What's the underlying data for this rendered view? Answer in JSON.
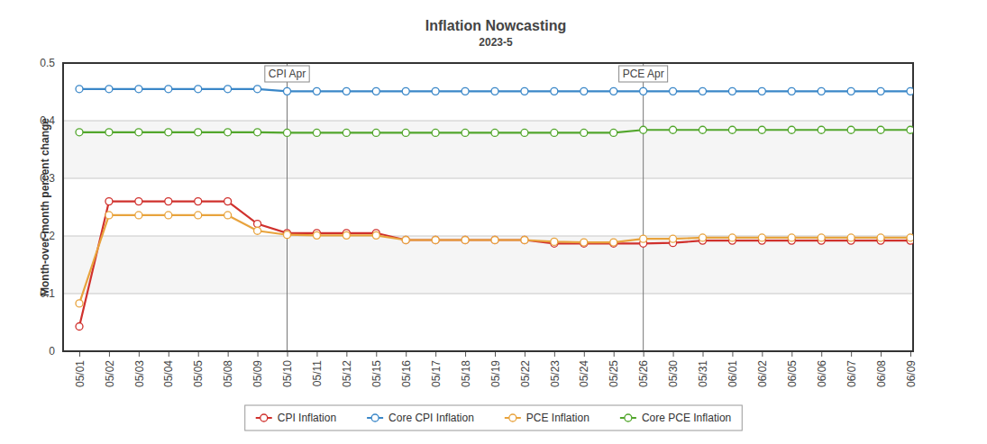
{
  "chart_data": {
    "type": "line",
    "title": "Inflation Nowcasting",
    "subtitle": "2023-5",
    "y_label": "Month-over-month percent change",
    "categories": [
      "05/01",
      "05/02",
      "05/03",
      "05/04",
      "05/05",
      "05/08",
      "05/09",
      "05/10",
      "05/11",
      "05/12",
      "05/15",
      "05/16",
      "05/17",
      "05/18",
      "05/19",
      "05/22",
      "05/23",
      "05/24",
      "05/25",
      "05/26",
      "05/30",
      "05/31",
      "06/01",
      "06/02",
      "06/05",
      "06/06",
      "06/07",
      "06/08",
      "06/09"
    ],
    "series": [
      {
        "name": "CPI Inflation",
        "color": "#d0312d",
        "marker": "circle",
        "values": [
          0.043,
          0.26,
          0.26,
          0.26,
          0.26,
          0.26,
          0.221,
          0.205,
          0.205,
          0.205,
          0.205,
          0.193,
          0.193,
          0.193,
          0.193,
          0.193,
          0.187,
          0.187,
          0.187,
          0.187,
          0.188,
          0.192,
          0.192,
          0.192,
          0.192,
          0.192,
          0.192,
          0.192,
          0.192
        ]
      },
      {
        "name": "Core CPI Inflation",
        "color": "#3a87c8",
        "marker": "circle",
        "values": [
          0.455,
          0.455,
          0.455,
          0.455,
          0.455,
          0.455,
          0.455,
          0.451,
          0.451,
          0.451,
          0.451,
          0.451,
          0.451,
          0.451,
          0.451,
          0.451,
          0.451,
          0.451,
          0.451,
          0.451,
          0.451,
          0.451,
          0.451,
          0.451,
          0.451,
          0.451,
          0.451,
          0.451,
          0.451
        ]
      },
      {
        "name": "PCE Inflation",
        "color": "#e8a33d",
        "marker": "circle",
        "values": [
          0.083,
          0.236,
          0.236,
          0.236,
          0.236,
          0.236,
          0.209,
          0.202,
          0.201,
          0.201,
          0.201,
          0.193,
          0.193,
          0.193,
          0.193,
          0.193,
          0.19,
          0.189,
          0.189,
          0.195,
          0.195,
          0.197,
          0.197,
          0.197,
          0.197,
          0.197,
          0.197,
          0.197,
          0.197
        ]
      },
      {
        "name": "Core PCE Inflation",
        "color": "#52a62c",
        "marker": "circle",
        "values": [
          0.38,
          0.38,
          0.38,
          0.38,
          0.38,
          0.38,
          0.38,
          0.379,
          0.379,
          0.379,
          0.379,
          0.379,
          0.379,
          0.379,
          0.379,
          0.379,
          0.379,
          0.379,
          0.379,
          0.384,
          0.384,
          0.384,
          0.384,
          0.384,
          0.384,
          0.384,
          0.384,
          0.384,
          0.384
        ]
      }
    ],
    "ylim": [
      0,
      0.5
    ],
    "yticks": [
      0,
      0.1,
      0.2,
      0.3,
      0.4,
      0.5
    ],
    "grid": true,
    "legend": "bottom",
    "annotations": [
      {
        "x": "05/10",
        "text": "CPI Apr"
      },
      {
        "x": "05/26",
        "text": "PCE Apr"
      }
    ]
  }
}
